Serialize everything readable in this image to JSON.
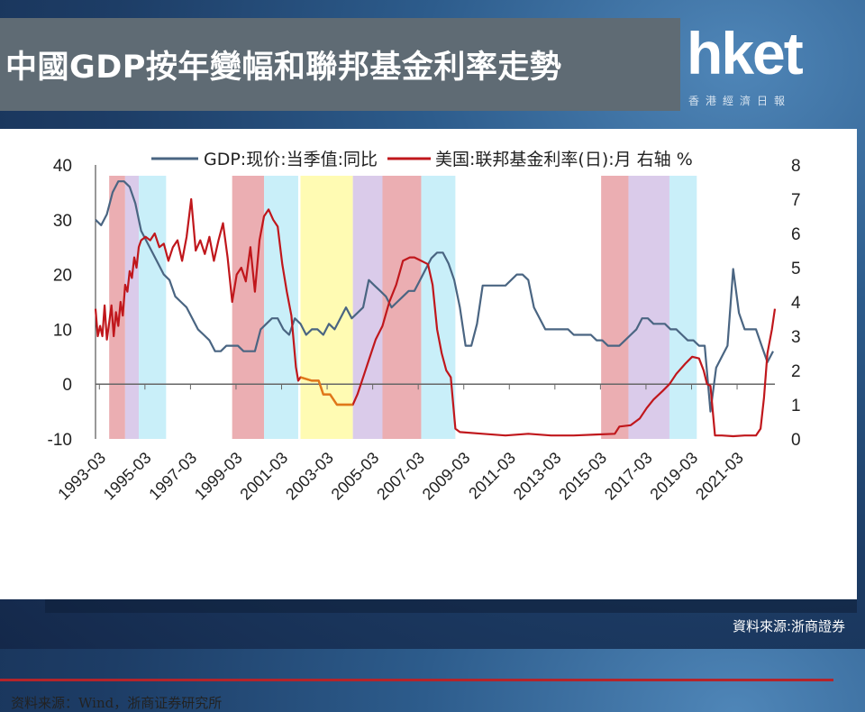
{
  "header": {
    "title": "中國GDP按年變幅和聯邦基金利率走勢"
  },
  "logo": {
    "main": "hket",
    "sub": "香港經濟日報"
  },
  "source_note": "资料来源：Wind，浙商证券研究所",
  "footer_note": "資料來源:浙商證券",
  "colors": {
    "gdp": "#4a6582",
    "rate": "#c0171c",
    "rate_negative_period": "#e07818",
    "band_red": "#e8a0a5",
    "band_purple": "#d3c2e6",
    "band_cyan": "#bfecf8",
    "band_yellow": "#fffaa6"
  },
  "chart_data": {
    "type": "line",
    "legend": [
      {
        "label": "GDP:现价:当季值:同比",
        "series": "gdp"
      },
      {
        "label": "美国:联邦基金利率(日):月 右轴 %",
        "series": "rate"
      }
    ],
    "y_left": {
      "ticks": [
        "40",
        "30",
        "20",
        "10",
        "0",
        "-10"
      ],
      "range": [
        -10,
        40
      ]
    },
    "y_right": {
      "ticks": [
        "8",
        "7",
        "6",
        "5",
        "4",
        "3",
        "2",
        "1",
        "0"
      ],
      "range": [
        0,
        8
      ]
    },
    "x_ticks": [
      "1993-03",
      "1995-03",
      "1997-03",
      "1999-03",
      "2001-03",
      "2003-03",
      "2005-03",
      "2007-03",
      "2009-03",
      "2011-03",
      "2013-03",
      "2015-03",
      "2017-03",
      "2019-03",
      "2021-03"
    ],
    "x_range": [
      1993.0,
      2022.83
    ],
    "bands": [
      {
        "from": 1993.6,
        "to": 1994.3,
        "color": "red"
      },
      {
        "from": 1994.3,
        "to": 1994.9,
        "color": "purple"
      },
      {
        "from": 1994.9,
        "to": 1996.1,
        "color": "cyan"
      },
      {
        "from": 1999.0,
        "to": 2000.4,
        "color": "red"
      },
      {
        "from": 2000.4,
        "to": 2001.9,
        "color": "cyan"
      },
      {
        "from": 2002.0,
        "to": 2004.3,
        "color": "yellow"
      },
      {
        "from": 2004.3,
        "to": 2005.6,
        "color": "purple"
      },
      {
        "from": 2005.6,
        "to": 2007.3,
        "color": "red"
      },
      {
        "from": 2007.3,
        "to": 2008.8,
        "color": "cyan"
      },
      {
        "from": 2015.2,
        "to": 2016.4,
        "color": "red"
      },
      {
        "from": 2016.4,
        "to": 2018.2,
        "color": "purple"
      },
      {
        "from": 2018.2,
        "to": 2019.4,
        "color": "cyan"
      }
    ],
    "series": [
      {
        "key": "gdp",
        "axis": "left",
        "points": [
          [
            1993.0,
            30
          ],
          [
            1993.25,
            29
          ],
          [
            1993.5,
            31
          ],
          [
            1993.75,
            35
          ],
          [
            1994.0,
            37
          ],
          [
            1994.25,
            37
          ],
          [
            1994.5,
            36
          ],
          [
            1994.75,
            33
          ],
          [
            1995.0,
            28
          ],
          [
            1995.25,
            26
          ],
          [
            1995.5,
            24
          ],
          [
            1995.75,
            22
          ],
          [
            1996.0,
            20
          ],
          [
            1996.25,
            19
          ],
          [
            1996.5,
            16
          ],
          [
            1996.75,
            15
          ],
          [
            1997.0,
            14
          ],
          [
            1997.25,
            12
          ],
          [
            1997.5,
            10
          ],
          [
            1997.75,
            9
          ],
          [
            1998.0,
            8
          ],
          [
            1998.25,
            6
          ],
          [
            1998.5,
            6
          ],
          [
            1998.75,
            7
          ],
          [
            1999.0,
            7
          ],
          [
            1999.25,
            7
          ],
          [
            1999.5,
            6
          ],
          [
            1999.75,
            6
          ],
          [
            2000.0,
            6
          ],
          [
            2000.25,
            10
          ],
          [
            2000.5,
            11
          ],
          [
            2000.75,
            12
          ],
          [
            2001.0,
            12
          ],
          [
            2001.25,
            10
          ],
          [
            2001.5,
            9
          ],
          [
            2001.75,
            12
          ],
          [
            2002.0,
            11
          ],
          [
            2002.25,
            9
          ],
          [
            2002.5,
            10
          ],
          [
            2002.75,
            10
          ],
          [
            2003.0,
            9
          ],
          [
            2003.25,
            11
          ],
          [
            2003.5,
            10
          ],
          [
            2003.75,
            12
          ],
          [
            2004.0,
            14
          ],
          [
            2004.25,
            12
          ],
          [
            2004.5,
            13
          ],
          [
            2004.75,
            14
          ],
          [
            2005.0,
            19
          ],
          [
            2005.25,
            18
          ],
          [
            2005.5,
            17
          ],
          [
            2005.75,
            16
          ],
          [
            2006.0,
            14
          ],
          [
            2006.25,
            15
          ],
          [
            2006.5,
            16
          ],
          [
            2006.75,
            17
          ],
          [
            2007.0,
            17
          ],
          [
            2007.25,
            19
          ],
          [
            2007.5,
            21
          ],
          [
            2007.75,
            23
          ],
          [
            2008.0,
            24
          ],
          [
            2008.25,
            24
          ],
          [
            2008.5,
            22
          ],
          [
            2008.75,
            19
          ],
          [
            2009.0,
            14
          ],
          [
            2009.25,
            7
          ],
          [
            2009.5,
            7
          ],
          [
            2009.75,
            11
          ],
          [
            2010.0,
            18
          ],
          [
            2010.25,
            18
          ],
          [
            2010.5,
            18
          ],
          [
            2010.75,
            18
          ],
          [
            2011.0,
            18
          ],
          [
            2011.25,
            19
          ],
          [
            2011.5,
            20
          ],
          [
            2011.75,
            20
          ],
          [
            2012.0,
            19
          ],
          [
            2012.25,
            14
          ],
          [
            2012.5,
            12
          ],
          [
            2012.75,
            10
          ],
          [
            2013.0,
            10
          ],
          [
            2013.25,
            10
          ],
          [
            2013.5,
            10
          ],
          [
            2013.75,
            10
          ],
          [
            2014.0,
            9
          ],
          [
            2014.25,
            9
          ],
          [
            2014.5,
            9
          ],
          [
            2014.75,
            9
          ],
          [
            2015.0,
            8
          ],
          [
            2015.25,
            8
          ],
          [
            2015.5,
            7
          ],
          [
            2015.75,
            7
          ],
          [
            2016.0,
            7
          ],
          [
            2016.25,
            8
          ],
          [
            2016.5,
            9
          ],
          [
            2016.75,
            10
          ],
          [
            2017.0,
            12
          ],
          [
            2017.25,
            12
          ],
          [
            2017.5,
            11
          ],
          [
            2017.75,
            11
          ],
          [
            2018.0,
            11
          ],
          [
            2018.25,
            10
          ],
          [
            2018.5,
            10
          ],
          [
            2018.75,
            9
          ],
          [
            2019.0,
            8
          ],
          [
            2019.25,
            8
          ],
          [
            2019.5,
            7
          ],
          [
            2019.75,
            7
          ],
          [
            2020.0,
            -5
          ],
          [
            2020.25,
            3
          ],
          [
            2020.5,
            5
          ],
          [
            2020.75,
            7
          ],
          [
            2021.0,
            21
          ],
          [
            2021.25,
            13
          ],
          [
            2021.5,
            10
          ],
          [
            2021.75,
            10
          ],
          [
            2022.0,
            10
          ],
          [
            2022.25,
            7
          ],
          [
            2022.5,
            4
          ],
          [
            2022.75,
            6
          ]
        ]
      },
      {
        "key": "rate",
        "axis": "right",
        "points": [
          [
            1993.0,
            3.8
          ],
          [
            1993.1,
            3.0
          ],
          [
            1993.2,
            3.3
          ],
          [
            1993.3,
            3.0
          ],
          [
            1993.4,
            3.9
          ],
          [
            1993.5,
            2.9
          ],
          [
            1993.6,
            3.4
          ],
          [
            1993.7,
            3.9
          ],
          [
            1993.8,
            3.0
          ],
          [
            1993.9,
            3.7
          ],
          [
            1994.0,
            3.3
          ],
          [
            1994.1,
            4.0
          ],
          [
            1994.2,
            3.6
          ],
          [
            1994.3,
            4.5
          ],
          [
            1994.4,
            4.3
          ],
          [
            1994.5,
            4.9
          ],
          [
            1994.6,
            4.7
          ],
          [
            1994.7,
            5.3
          ],
          [
            1994.8,
            5.0
          ],
          [
            1994.9,
            5.6
          ],
          [
            1995.0,
            5.8
          ],
          [
            1995.2,
            5.9
          ],
          [
            1995.4,
            5.8
          ],
          [
            1995.6,
            6.0
          ],
          [
            1995.8,
            5.6
          ],
          [
            1996.0,
            5.7
          ],
          [
            1996.2,
            5.2
          ],
          [
            1996.4,
            5.6
          ],
          [
            1996.6,
            5.8
          ],
          [
            1996.8,
            5.2
          ],
          [
            1997.0,
            5.9
          ],
          [
            1997.2,
            7.0
          ],
          [
            1997.4,
            5.5
          ],
          [
            1997.6,
            5.8
          ],
          [
            1997.8,
            5.4
          ],
          [
            1998.0,
            5.9
          ],
          [
            1998.2,
            5.2
          ],
          [
            1998.4,
            5.8
          ],
          [
            1998.6,
            6.3
          ],
          [
            1998.8,
            5.3
          ],
          [
            1999.0,
            4.0
          ],
          [
            1999.2,
            4.8
          ],
          [
            1999.4,
            5.0
          ],
          [
            1999.6,
            4.6
          ],
          [
            1999.8,
            5.6
          ],
          [
            2000.0,
            4.3
          ],
          [
            2000.2,
            5.8
          ],
          [
            2000.4,
            6.5
          ],
          [
            2000.6,
            6.7
          ],
          [
            2000.8,
            6.4
          ],
          [
            2001.0,
            6.2
          ],
          [
            2001.2,
            5.1
          ],
          [
            2001.4,
            4.3
          ],
          [
            2001.6,
            3.6
          ],
          [
            2001.8,
            2.1
          ],
          [
            2001.9,
            1.7
          ],
          [
            2002.0,
            1.8
          ],
          [
            2002.5,
            1.7
          ],
          [
            2002.8,
            1.7
          ],
          [
            2003.0,
            1.3
          ],
          [
            2003.3,
            1.3
          ],
          [
            2003.6,
            1.0
          ],
          [
            2004.0,
            1.0
          ],
          [
            2004.3,
            1.0
          ],
          [
            2004.5,
            1.3
          ],
          [
            2004.8,
            1.9
          ],
          [
            2005.0,
            2.3
          ],
          [
            2005.3,
            2.9
          ],
          [
            2005.6,
            3.3
          ],
          [
            2005.9,
            4.0
          ],
          [
            2006.2,
            4.5
          ],
          [
            2006.5,
            5.2
          ],
          [
            2006.8,
            5.3
          ],
          [
            2007.0,
            5.3
          ],
          [
            2007.3,
            5.2
          ],
          [
            2007.6,
            5.1
          ],
          [
            2007.8,
            4.5
          ],
          [
            2008.0,
            3.2
          ],
          [
            2008.2,
            2.5
          ],
          [
            2008.4,
            2.0
          ],
          [
            2008.6,
            1.8
          ],
          [
            2008.8,
            0.3
          ],
          [
            2009.0,
            0.2
          ],
          [
            2010.0,
            0.15
          ],
          [
            2011.0,
            0.1
          ],
          [
            2012.0,
            0.15
          ],
          [
            2013.0,
            0.1
          ],
          [
            2014.0,
            0.1
          ],
          [
            2015.0,
            0.13
          ],
          [
            2015.8,
            0.15
          ],
          [
            2016.0,
            0.36
          ],
          [
            2016.5,
            0.4
          ],
          [
            2016.9,
            0.6
          ],
          [
            2017.2,
            0.9
          ],
          [
            2017.5,
            1.15
          ],
          [
            2017.9,
            1.4
          ],
          [
            2018.2,
            1.6
          ],
          [
            2018.5,
            1.9
          ],
          [
            2018.9,
            2.2
          ],
          [
            2019.2,
            2.4
          ],
          [
            2019.5,
            2.35
          ],
          [
            2019.7,
            2.0
          ],
          [
            2019.85,
            1.6
          ],
          [
            2020.0,
            1.55
          ],
          [
            2020.2,
            0.1
          ],
          [
            2020.5,
            0.1
          ],
          [
            2021.0,
            0.08
          ],
          [
            2021.5,
            0.1
          ],
          [
            2022.0,
            0.1
          ],
          [
            2022.2,
            0.3
          ],
          [
            2022.35,
            1.2
          ],
          [
            2022.5,
            2.5
          ],
          [
            2022.7,
            3.2
          ],
          [
            2022.83,
            3.8
          ]
        ]
      }
    ]
  }
}
